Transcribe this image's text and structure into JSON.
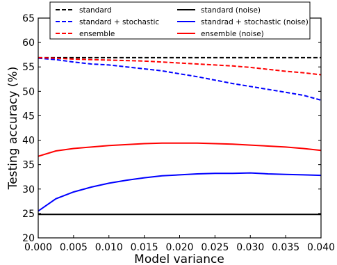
{
  "chart_data": {
    "type": "line",
    "title": "",
    "xlabel": "Model variance",
    "ylabel": "Testing accuracy (%)",
    "xlim": [
      0.0,
      0.04
    ],
    "ylim": [
      20,
      65
    ],
    "xticks": [
      "0.000",
      "0.005",
      "0.010",
      "0.015",
      "0.020",
      "0.025",
      "0.030",
      "0.035",
      "0.040"
    ],
    "yticks": [
      "20",
      "25",
      "30",
      "35",
      "40",
      "45",
      "50",
      "55",
      "60",
      "65"
    ],
    "grid": false,
    "legend_position": "top",
    "x": [
      0.0,
      0.0025,
      0.005,
      0.0075,
      0.01,
      0.0125,
      0.015,
      0.0175,
      0.02,
      0.0225,
      0.025,
      0.0275,
      0.03,
      0.0325,
      0.035,
      0.0375,
      0.04
    ],
    "series": [
      {
        "name": "standard",
        "color": "#000000",
        "dash": true,
        "values": [
          56.9,
          56.9,
          56.9,
          56.9,
          56.9,
          56.9,
          56.9,
          56.9,
          56.9,
          56.9,
          56.9,
          56.9,
          56.9,
          56.9,
          56.9,
          56.9,
          56.9
        ]
      },
      {
        "name": "standard + stochastic",
        "color": "#0000ff",
        "dash": true,
        "values": [
          56.8,
          56.5,
          56.0,
          55.6,
          55.4,
          55.0,
          54.6,
          54.2,
          53.6,
          53.0,
          52.3,
          51.6,
          51.0,
          50.4,
          49.8,
          49.2,
          48.2
        ]
      },
      {
        "name": "ensemble",
        "color": "#ff0000",
        "dash": true,
        "values": [
          56.9,
          56.8,
          56.6,
          56.5,
          56.4,
          56.3,
          56.2,
          56.0,
          55.8,
          55.6,
          55.4,
          55.2,
          54.9,
          54.5,
          54.1,
          53.8,
          53.4
        ]
      },
      {
        "name": "standard (noise)",
        "color": "#000000",
        "dash": false,
        "values": [
          24.8,
          24.8,
          24.8,
          24.8,
          24.8,
          24.8,
          24.8,
          24.8,
          24.8,
          24.8,
          24.8,
          24.8,
          24.8,
          24.8,
          24.8,
          24.8,
          24.8
        ]
      },
      {
        "name": "standrad + stochastic (noise)",
        "color": "#0000ff",
        "dash": false,
        "values": [
          25.5,
          28.0,
          29.4,
          30.4,
          31.2,
          31.8,
          32.3,
          32.7,
          32.9,
          33.1,
          33.2,
          33.2,
          33.3,
          33.1,
          33.0,
          32.9,
          32.8
        ]
      },
      {
        "name": "ensemble (noise)",
        "color": "#ff0000",
        "dash": false,
        "values": [
          36.7,
          37.8,
          38.3,
          38.6,
          38.9,
          39.1,
          39.3,
          39.4,
          39.4,
          39.4,
          39.3,
          39.2,
          39.0,
          38.8,
          38.6,
          38.3,
          37.9
        ]
      }
    ]
  }
}
